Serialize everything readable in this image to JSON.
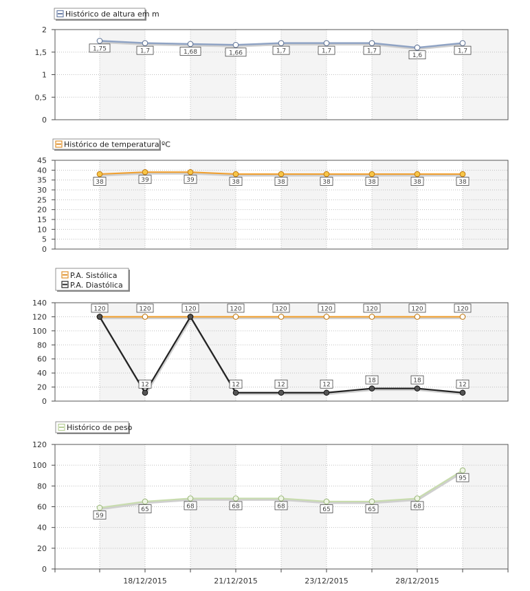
{
  "chart_data": [
    {
      "type": "line",
      "title": "Histórico de altura em m",
      "ylim": [
        0,
        2
      ],
      "yticks": [
        "0",
        "0,5",
        "1",
        "1,5",
        "2"
      ],
      "ytick_values": [
        0,
        0.5,
        1,
        1.5,
        2
      ],
      "grid": true,
      "series": [
        {
          "name": "Histórico de altura em m",
          "color": "#8fa3c4",
          "values": [
            1.75,
            1.7,
            1.68,
            1.66,
            1.7,
            1.7,
            1.7,
            1.6,
            1.7
          ],
          "labels": [
            "1,75",
            "1,7",
            "1,68",
            "1,66",
            "1,7",
            "1,7",
            "1,7",
            "1,6",
            "1,7"
          ]
        }
      ]
    },
    {
      "type": "line",
      "title": "Histórico de temperatura ºC",
      "ylim": [
        0,
        45
      ],
      "yticks": [
        "0",
        "5",
        "10",
        "15",
        "20",
        "25",
        "30",
        "35",
        "40",
        "45"
      ],
      "ytick_values": [
        0,
        5,
        10,
        15,
        20,
        25,
        30,
        35,
        40,
        45
      ],
      "grid": true,
      "series": [
        {
          "name": "Histórico de temperatura ºC",
          "color": "#f0a030",
          "values": [
            38,
            39,
            39,
            38,
            38,
            38,
            38,
            38,
            38
          ],
          "labels": [
            "38",
            "39",
            "39",
            "38",
            "38",
            "38",
            "38",
            "38",
            "38"
          ]
        }
      ]
    },
    {
      "type": "line",
      "ylim": [
        0,
        140
      ],
      "yticks": [
        "0",
        "20",
        "40",
        "60",
        "80",
        "100",
        "120",
        "140"
      ],
      "ytick_values": [
        0,
        20,
        40,
        60,
        80,
        100,
        120,
        140
      ],
      "grid": true,
      "series": [
        {
          "name": "P.A. Sistólica",
          "color": "#f0a030",
          "values": [
            120,
            120,
            120,
            120,
            120,
            120,
            120,
            120,
            120
          ],
          "labels": [
            "120",
            "120",
            "120",
            "120",
            "120",
            "120",
            "120",
            "120",
            "120"
          ]
        },
        {
          "name": "P.A. Diastólica",
          "color": "#222222",
          "values": [
            120,
            12,
            120,
            12,
            12,
            12,
            18,
            18,
            12
          ],
          "labels": [
            "",
            "12",
            "",
            "12",
            "12",
            "12",
            "18",
            "18",
            "12"
          ]
        }
      ]
    },
    {
      "type": "line",
      "title": "Histórico de peso",
      "ylim": [
        0,
        120
      ],
      "yticks": [
        "0",
        "20",
        "40",
        "60",
        "80",
        "100",
        "120"
      ],
      "ytick_values": [
        0,
        20,
        40,
        60,
        80,
        100,
        120
      ],
      "grid": true,
      "x_date_labels": [
        "18/12/2015",
        "21/12/2015",
        "23/12/2015",
        "28/12/2015"
      ],
      "series": [
        {
          "name": "Histórico de peso",
          "color": "#c8dcae",
          "values": [
            59,
            65,
            68,
            68,
            68,
            65,
            65,
            68,
            95
          ],
          "labels": [
            "59",
            "65",
            "68",
            "68",
            "68",
            "65",
            "65",
            "68",
            "95"
          ]
        }
      ]
    }
  ]
}
